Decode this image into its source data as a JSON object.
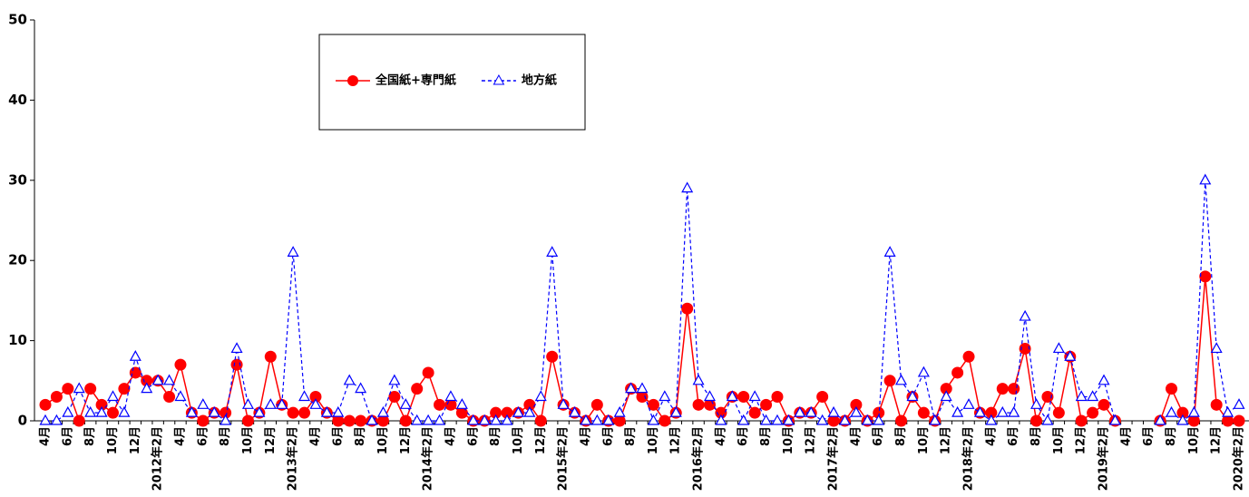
{
  "chart_data": {
    "type": "line",
    "categories": [
      "4月",
      null,
      "6月",
      null,
      "8月",
      null,
      "10月",
      null,
      "12月",
      null,
      "2012年2月",
      null,
      "4月",
      null,
      "6月",
      null,
      "8月",
      null,
      "10月",
      null,
      "12月",
      null,
      "2013年2月",
      null,
      "4月",
      null,
      "6月",
      null,
      "8月",
      null,
      "10月",
      null,
      "12月",
      null,
      "2014年2月",
      null,
      "4月",
      null,
      "6月",
      null,
      "8月",
      null,
      "10月",
      null,
      "12月",
      null,
      "2015年2月",
      null,
      "4月",
      null,
      "6月",
      null,
      "8月",
      null,
      "10月",
      null,
      "12月",
      null,
      "2016年2月",
      null,
      "4月",
      null,
      "6月",
      null,
      "8月",
      null,
      "10月",
      null,
      "12月",
      null,
      "2017年2月",
      null,
      "4月",
      null,
      "6月",
      null,
      "8月",
      null,
      "10月",
      null,
      "12月",
      null,
      "2018年2月",
      null,
      "4月",
      null,
      "6月",
      null,
      "8月",
      null,
      "10月",
      null,
      "12月",
      null,
      "2019年2月",
      null,
      "4月",
      null,
      "6月",
      null,
      "8月",
      null,
      "10月",
      null,
      "12月",
      null,
      "2020年2月"
    ],
    "series": [
      {
        "name": "全国紙+専門紙",
        "color": "#ff0000",
        "marker": "circle",
        "dashed": false,
        "values": [
          2,
          3,
          4,
          0,
          4,
          2,
          1,
          4,
          6,
          5,
          5,
          3,
          7,
          1,
          0,
          1,
          1,
          7,
          0,
          1,
          8,
          2,
          1,
          1,
          3,
          1,
          0,
          0,
          0,
          0,
          0,
          3,
          0,
          4,
          6,
          2,
          2,
          1,
          0,
          0,
          1,
          1,
          1,
          2,
          0,
          8,
          2,
          1,
          0,
          2,
          0,
          0,
          4,
          3,
          2,
          0,
          1,
          14,
          2,
          2,
          1,
          3,
          3,
          1,
          2,
          3,
          0,
          1,
          1,
          3,
          0,
          0,
          2,
          0,
          1,
          5,
          0,
          3,
          1,
          0,
          4,
          6,
          8,
          1,
          1,
          4,
          4,
          9,
          0,
          3,
          1,
          8,
          0,
          1,
          2,
          0,
          null,
          null,
          null,
          0,
          4,
          1,
          0,
          18,
          2,
          0,
          0
        ]
      },
      {
        "name": "地方紙",
        "color": "#0000ff",
        "marker": "triangle",
        "dashed": true,
        "values": [
          0,
          0,
          1,
          4,
          1,
          1,
          3,
          1,
          8,
          4,
          5,
          5,
          3,
          1,
          2,
          1,
          0,
          9,
          2,
          1,
          2,
          2,
          21,
          3,
          2,
          1,
          1,
          5,
          4,
          0,
          1,
          5,
          2,
          0,
          0,
          0,
          3,
          2,
          0,
          0,
          0,
          0,
          1,
          1,
          3,
          21,
          2,
          1,
          0,
          0,
          0,
          1,
          4,
          4,
          0,
          3,
          1,
          29,
          5,
          3,
          0,
          3,
          0,
          3,
          0,
          0,
          0,
          1,
          1,
          0,
          1,
          0,
          1,
          0,
          0,
          21,
          5,
          3,
          6,
          0,
          3,
          1,
          2,
          1,
          0,
          1,
          1,
          13,
          2,
          0,
          9,
          8,
          3,
          3,
          5,
          0,
          null,
          null,
          null,
          0,
          1,
          0,
          1,
          30,
          9,
          1,
          2
        ]
      }
    ],
    "ylim": [
      0,
      50
    ],
    "yticks": [
      0,
      10,
      20,
      30,
      40,
      50
    ],
    "grid": false
  }
}
